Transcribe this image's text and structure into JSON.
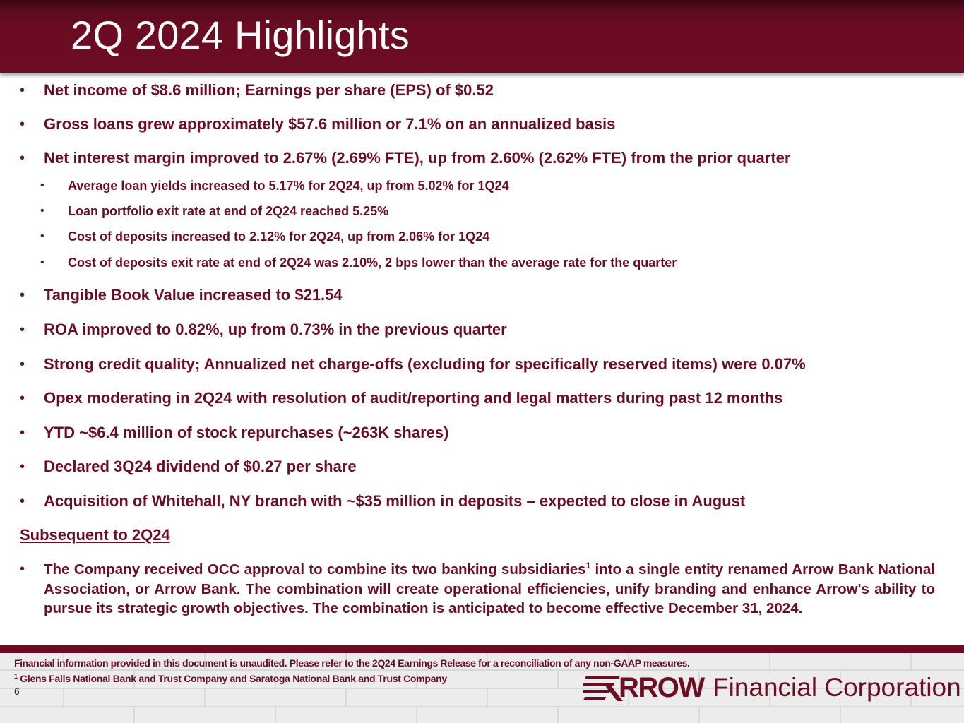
{
  "header": {
    "title": "2Q 2024 Highlights"
  },
  "bullets": [
    "Net income of $8.6 million; Earnings per share (EPS) of $0.52",
    "Gross loans grew approximately $57.6 million or 7.1% on an annualized basis",
    "Net interest margin improved to 2.67% (2.69% FTE), up from 2.60% (2.62% FTE) from the prior quarter"
  ],
  "sub_bullets": [
    "Average loan yields increased to 5.17% for 2Q24, up from 5.02% for 1Q24",
    "Loan portfolio exit rate at end of 2Q24 reached 5.25%",
    "Cost of deposits increased to 2.12% for 2Q24, up from 2.06% for 1Q24",
    "Cost of deposits exit rate at end of 2Q24 was 2.10%, 2 bps lower than the average rate for the quarter"
  ],
  "bullets2": [
    "Tangible Book Value increased to $21.54",
    "ROA improved to 0.82%, up from 0.73% in the previous quarter",
    "Strong credit quality; Annualized net charge-offs (excluding for specifically reserved items) were 0.07%",
    "Opex moderating in 2Q24 with resolution of audit/reporting and legal matters during past 12 months",
    "YTD ~$6.4 million of stock repurchases (~263K shares)",
    "Declared 3Q24 dividend of $0.27 per share",
    "Acquisition of Whitehall, NY branch with ~$35 million in deposits – expected to close in August"
  ],
  "subsequent": {
    "heading": "Subsequent to 2Q24",
    "text_before": "The Company received OCC approval to combine its two banking subsidiaries",
    "footnote_mark": "1",
    "text_after": " into a single entity renamed Arrow Bank National Association, or Arrow Bank. The combination will create operational efficiencies, unify branding and enhance Arrow's ability to pursue its strategic growth objectives. The combination is anticipated to become effective December 31, 2024."
  },
  "footer": {
    "disclaimer": "Financial information provided in this document is unaudited. Please refer to the 2Q24 Earnings Release for a reconciliation of any non-GAAP measures.",
    "footnote_mark": "1",
    "footnote": " Glens Falls National Bank and Trust Company and Saratoga National Bank and Trust Company",
    "page_number": "6"
  },
  "logo": {
    "brand": "RROW",
    "company": "Financial Corporation"
  },
  "colors": {
    "maroon": "#6d0d23",
    "text": "#6a0f23"
  }
}
